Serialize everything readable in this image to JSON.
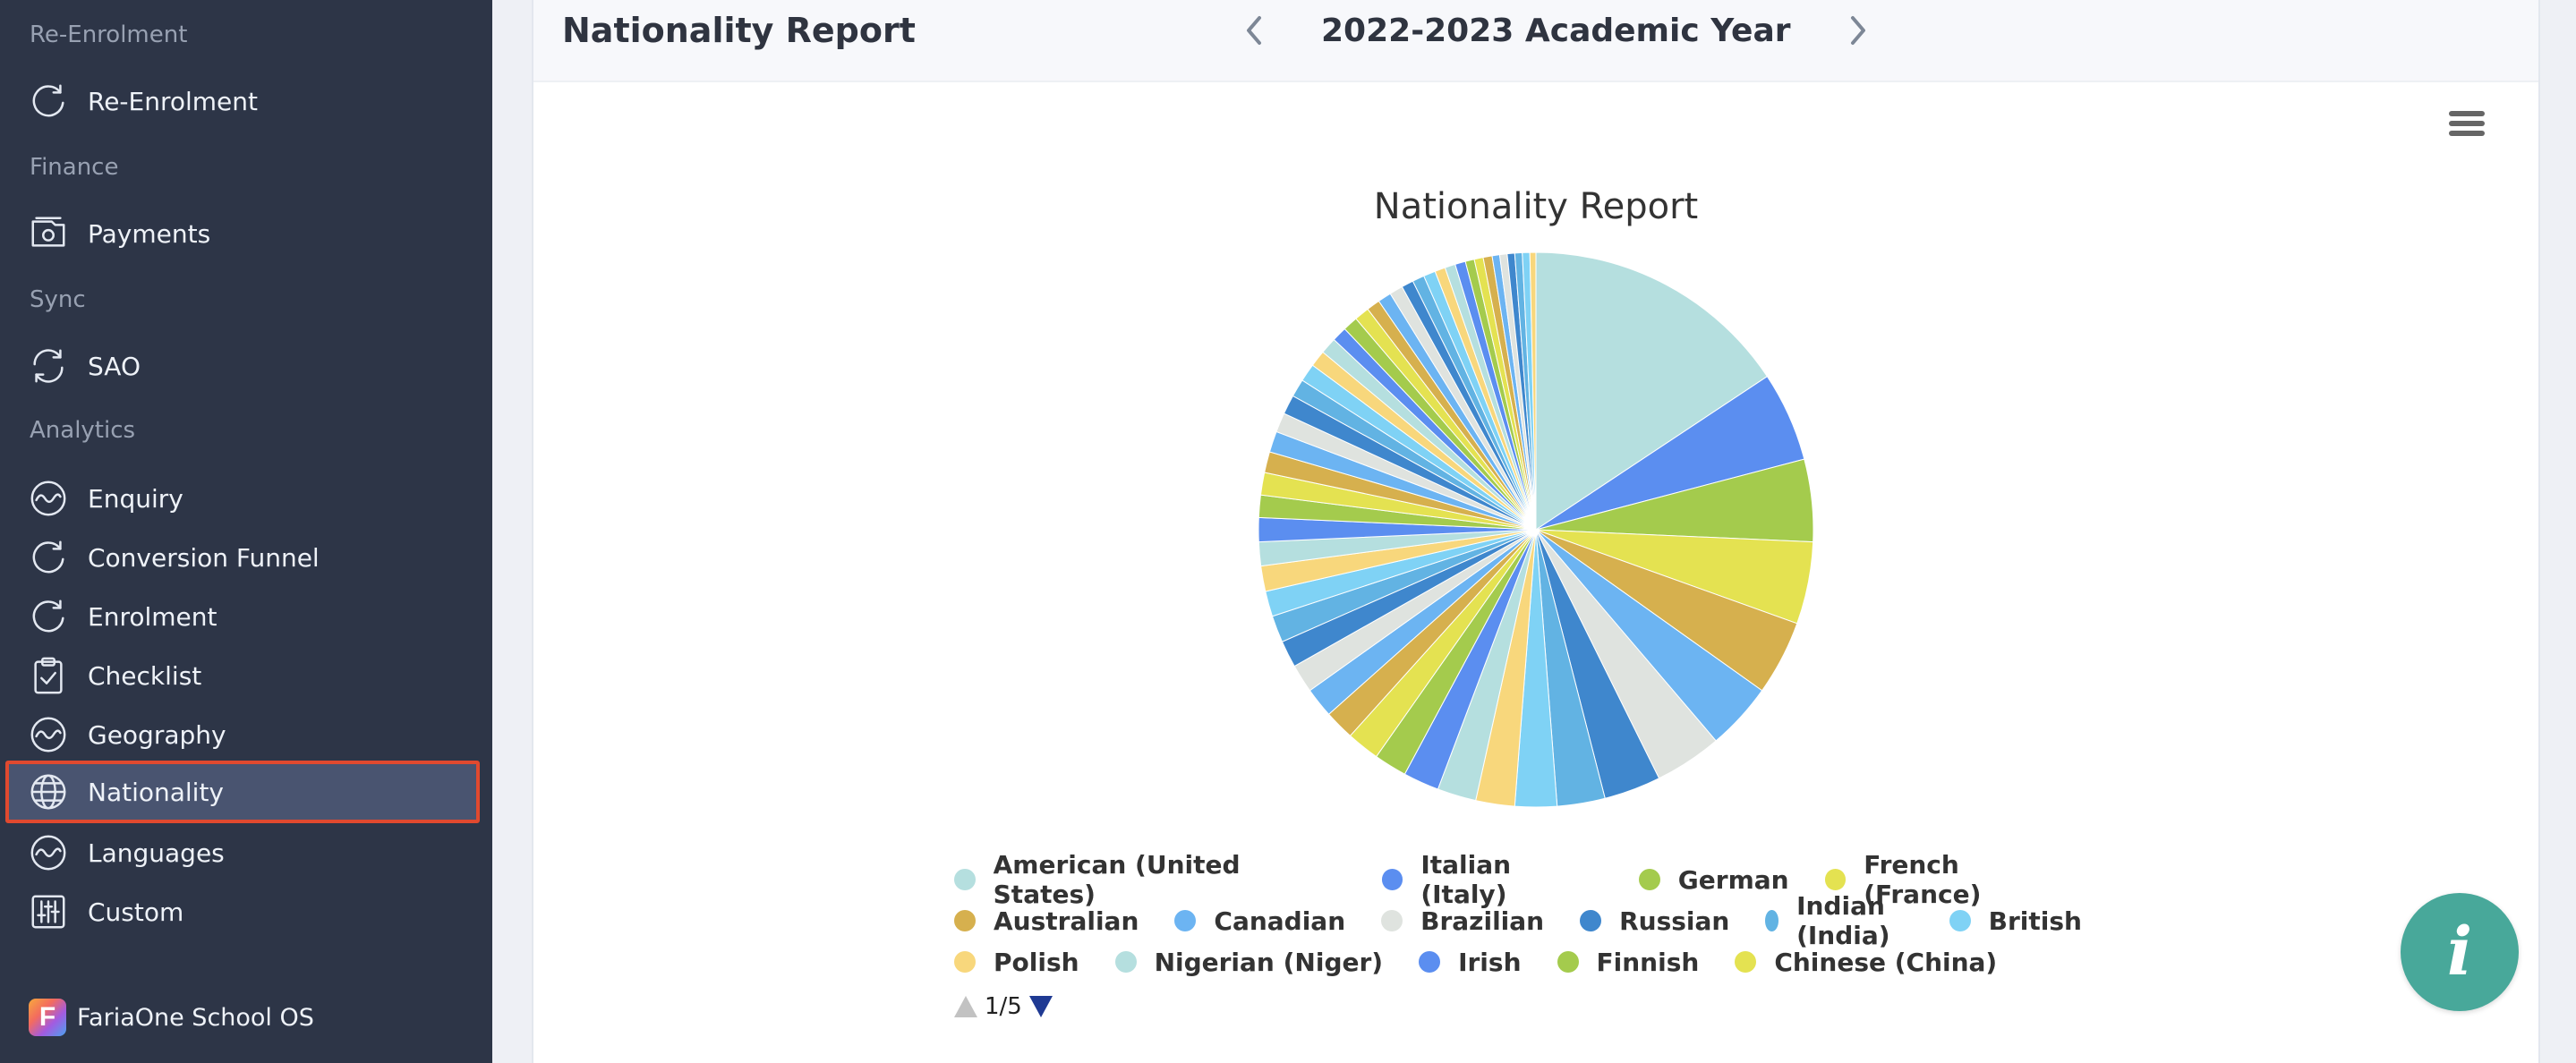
{
  "sidebar": {
    "sections": [
      "Re-Enrolment",
      "Finance",
      "Sync",
      "Analytics"
    ],
    "items": [
      {
        "label": "Re-Enrolment",
        "icon": "refresh-icon"
      },
      {
        "label": "Payments",
        "icon": "camera-icon"
      },
      {
        "label": "SAO",
        "icon": "sync-icon"
      },
      {
        "label": "Enquiry",
        "icon": "wave-icon"
      },
      {
        "label": "Conversion Funnel",
        "icon": "refresh-icon"
      },
      {
        "label": "Enrolment",
        "icon": "refresh-icon"
      },
      {
        "label": "Checklist",
        "icon": "clipboard-check-icon"
      },
      {
        "label": "Geography",
        "icon": "wave-icon"
      },
      {
        "label": "Nationality",
        "icon": "globe-icon",
        "active": true
      },
      {
        "label": "Languages",
        "icon": "wave-icon"
      },
      {
        "label": "Custom",
        "icon": "sliders-icon"
      }
    ],
    "brand": {
      "name": "FariaOne School OS",
      "logo_letter": "F"
    }
  },
  "header": {
    "title": "Nationality Report",
    "academic_year": "2022-2023 Academic Year"
  },
  "info_button": {
    "glyph": "i"
  },
  "colors": {
    "sidebar_bg": "#2d3547",
    "active_item_bg": "#495470",
    "active_border": "#e0492f",
    "info_button": "#48a89a"
  },
  "chart_data": {
    "type": "pie",
    "title": "Nationality Report",
    "legend": {
      "placement": "bottom",
      "page": "1/5",
      "rows": [
        [
          {
            "name": "American (United States)",
            "color": "#b5dfdf"
          },
          {
            "name": "Italian (Italy)",
            "color": "#5b8ef0"
          },
          {
            "name": "German",
            "color": "#a4cb4d"
          },
          {
            "name": "French (France)",
            "color": "#e4e251"
          }
        ],
        [
          {
            "name": "Australian",
            "color": "#d6b04e"
          },
          {
            "name": "Canadian",
            "color": "#6cb4f2"
          },
          {
            "name": "Brazilian",
            "color": "#dfe3df"
          },
          {
            "name": "Russian",
            "color": "#3f87cd"
          },
          {
            "name": "Indian (India)",
            "color": "#62b3e3"
          },
          {
            "name": "British",
            "color": "#7fd2f5"
          }
        ],
        [
          {
            "name": "Polish",
            "color": "#f8d77c"
          },
          {
            "name": "Nigerian (Niger)",
            "color": "#b5dfdf"
          },
          {
            "name": "Irish",
            "color": "#5b8ef0"
          },
          {
            "name": "Finnish",
            "color": "#a4cb4d"
          },
          {
            "name": "Chinese (China)",
            "color": "#e4e251"
          }
        ]
      ]
    },
    "slice_colors": [
      "#b5dfdf",
      "#5b8ef0",
      "#a4cb4d",
      "#e4e251",
      "#d6b04e",
      "#6cb4f2",
      "#dfe3df",
      "#3f87cd",
      "#62b3e3",
      "#7fd2f5",
      "#f8d77c"
    ],
    "values": [
      18,
      6,
      5.5,
      5.5,
      5,
      4.5,
      4.5,
      3.8,
      3.2,
      2.8,
      2.6,
      2.6,
      2.4,
      2.2,
      2.2,
      2,
      2,
      1.9,
      1.8,
      1.8,
      1.7,
      1.7,
      1.6,
      1.6,
      1.5,
      1.5,
      1.4,
      1.4,
      1.3,
      1.3,
      1.2,
      1.2,
      1.1,
      1.1,
      1,
      1,
      1,
      0.9,
      0.9,
      0.9,
      0.8,
      0.8,
      0.8,
      0.7,
      0.7,
      0.7,
      0.6,
      0.6,
      0.6,
      0.5,
      0.5,
      0.5,
      0.5,
      0.5,
      0.4
    ]
  }
}
